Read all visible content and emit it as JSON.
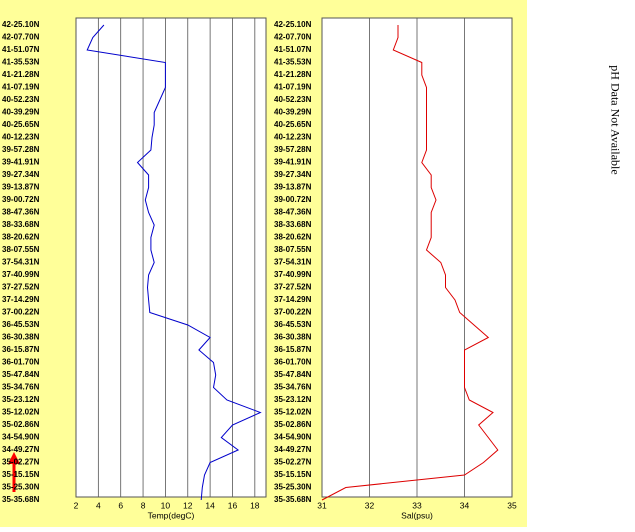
{
  "chart_data": [
    {
      "type": "line",
      "axis_label": "Temp(degC)",
      "color": "#0000cc",
      "categories": [
        "42-25.10N",
        "42-07.70N",
        "41-51.07N",
        "41-35.53N",
        "41-21.28N",
        "41-07.19N",
        "40-52.23N",
        "40-39.29N",
        "40-25.65N",
        "40-12.23N",
        "39-57.28N",
        "39-41.91N",
        "39-27.34N",
        "39-13.87N",
        "39-00.72N",
        "38-47.36N",
        "38-33.68N",
        "38-20.62N",
        "38-07.55N",
        "37-54.31N",
        "37-40.99N",
        "37-27.52N",
        "37-14.29N",
        "37-00.22N",
        "36-45.53N",
        "36-30.38N",
        "36-15.87N",
        "36-01.70N",
        "35-47.84N",
        "35-34.76N",
        "35-23.12N",
        "35-12.02N",
        "35-02.86N",
        "34-54.90N",
        "34-49.27N",
        "35-02.27N",
        "35-15.15N",
        "35-25.30N",
        "35-35.68N"
      ],
      "values": [
        4.5,
        3.5,
        3,
        10,
        10,
        10,
        9.5,
        9,
        9,
        8.8,
        8.7,
        7.5,
        8.5,
        8.5,
        8.2,
        8.5,
        9,
        8.7,
        8.7,
        9,
        8.5,
        8.4,
        8.5,
        8.6,
        12,
        14,
        13,
        14.3,
        14.5,
        14.3,
        15.5,
        18.5,
        16,
        15,
        16.5,
        14,
        13.5,
        13.3,
        13.2
      ],
      "xlim": [
        2,
        19
      ],
      "xticks": [
        2,
        4,
        6,
        8,
        10,
        12,
        14,
        16,
        18
      ],
      "grid": true
    },
    {
      "type": "line",
      "axis_label": "Sal(psu)",
      "color": "#dd0000",
      "categories": [
        "42-25.10N",
        "42-07.70N",
        "41-51.07N",
        "41-35.53N",
        "41-21.28N",
        "41-07.19N",
        "40-52.23N",
        "40-39.29N",
        "40-25.65N",
        "40-12.23N",
        "39-57.28N",
        "39-41.91N",
        "39-27.34N",
        "39-13.87N",
        "39-00.72N",
        "38-47.36N",
        "38-33.68N",
        "38-20.62N",
        "38-07.55N",
        "37-54.31N",
        "37-40.99N",
        "37-27.52N",
        "37-14.29N",
        "37-00.22N",
        "36-45.53N",
        "36-30.38N",
        "36-15.87N",
        "36-01.70N",
        "35-47.84N",
        "35-34.76N",
        "35-23.12N",
        "35-12.02N",
        "35-02.86N",
        "34-54.90N",
        "34-49.27N",
        "35-02.27N",
        "35-15.15N",
        "35-25.30N",
        "35-35.68N"
      ],
      "values": [
        32.6,
        32.6,
        32.5,
        33.1,
        33.1,
        33.2,
        33.2,
        33.2,
        33.2,
        33.2,
        33.2,
        33.1,
        33.3,
        33.3,
        33.4,
        33.3,
        33.3,
        33.3,
        33.2,
        33.5,
        33.6,
        33.6,
        33.8,
        33.9,
        34.2,
        34.5,
        34.0,
        34.0,
        34.0,
        34.0,
        34.1,
        34.6,
        34.3,
        34.5,
        34.7,
        34.4,
        34.0,
        31.5,
        31.0
      ],
      "xlim": [
        31,
        35
      ],
      "xticks": [
        31,
        32,
        33,
        34,
        35
      ],
      "grid": true
    }
  ],
  "note": "pH Data Not Available"
}
